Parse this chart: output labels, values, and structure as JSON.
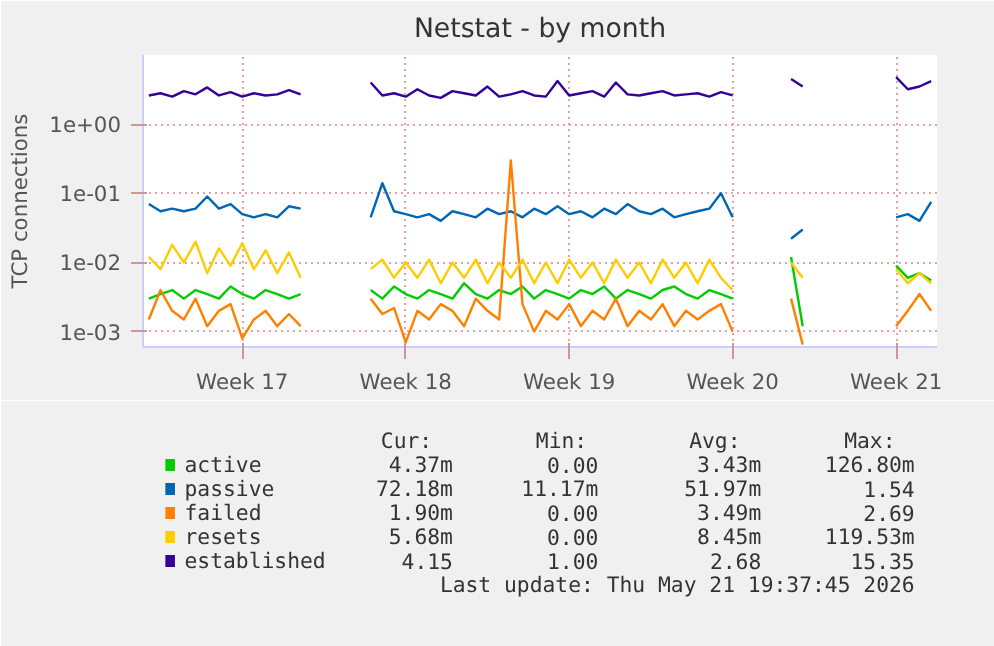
{
  "chart_data": {
    "type": "line",
    "title": "Netstat - by month",
    "ylabel": "TCP connections",
    "categories": [
      null,
      null,
      null,
      null,
      null,
      null,
      null,
      null,
      "Week 17",
      null,
      null,
      null,
      null,
      null,
      null,
      null,
      null,
      null,
      null,
      null,
      null,
      null,
      "Week 18",
      null,
      null,
      null,
      null,
      null,
      null,
      null,
      null,
      null,
      null,
      null,
      null,
      null,
      "Week 19",
      null,
      null,
      null,
      null,
      null,
      null,
      null,
      null,
      null,
      null,
      null,
      null,
      null,
      "Week 20",
      null,
      null,
      null,
      null,
      null,
      null,
      null,
      null,
      null,
      null,
      null,
      null,
      null,
      "Week 21",
      null,
      null,
      null
    ],
    "series": [
      {
        "name": "active",
        "color": "#00cc00",
        "values": [
          0.003,
          0.0035,
          0.004,
          0.003,
          0.004,
          0.0035,
          0.003,
          0.0045,
          0.0035,
          0.003,
          0.004,
          0.0035,
          0.003,
          0.0035,
          null,
          null,
          null,
          null,
          null,
          0.004,
          0.003,
          0.0045,
          0.0035,
          0.003,
          0.004,
          0.0035,
          0.003,
          0.005,
          0.0035,
          0.003,
          0.004,
          0.0035,
          0.0045,
          0.003,
          0.004,
          0.0035,
          0.003,
          0.004,
          0.0035,
          0.0045,
          0.003,
          0.004,
          0.0035,
          0.003,
          0.004,
          0.0045,
          0.0035,
          0.003,
          0.004,
          0.0035,
          0.003,
          null,
          null,
          null,
          null,
          0.012,
          0.0012,
          null,
          null,
          null,
          null,
          null,
          null,
          null,
          0.009,
          0.006,
          0.007,
          0.0055
        ]
      },
      {
        "name": "passive",
        "color": "#0066b3",
        "values": [
          0.07,
          0.055,
          0.06,
          0.055,
          0.06,
          0.09,
          0.06,
          0.07,
          0.05,
          0.045,
          0.05,
          0.045,
          0.065,
          0.06,
          null,
          null,
          null,
          null,
          null,
          0.045,
          0.14,
          0.055,
          0.05,
          0.045,
          0.05,
          0.04,
          0.055,
          0.05,
          0.045,
          0.06,
          0.05,
          0.055,
          0.045,
          0.06,
          0.05,
          0.065,
          0.05,
          0.055,
          0.045,
          0.06,
          0.05,
          0.07,
          0.055,
          0.05,
          0.06,
          0.045,
          0.05,
          0.055,
          0.06,
          0.1,
          0.045,
          null,
          null,
          null,
          null,
          0.022,
          0.03,
          null,
          null,
          null,
          null,
          null,
          null,
          null,
          0.045,
          0.05,
          0.04,
          0.075
        ]
      },
      {
        "name": "failed",
        "color": "#ff8000",
        "values": [
          0.0015,
          0.004,
          0.002,
          0.0015,
          0.003,
          0.0012,
          0.002,
          0.0025,
          0.0008,
          0.0015,
          0.002,
          0.0012,
          0.0018,
          0.0012,
          null,
          null,
          null,
          null,
          null,
          0.003,
          0.0018,
          0.0022,
          0.0007,
          0.002,
          0.0015,
          0.0025,
          0.002,
          0.0012,
          0.003,
          0.002,
          0.0015,
          0.3,
          0.0025,
          0.001,
          0.002,
          0.0015,
          0.0025,
          0.0012,
          0.002,
          0.0015,
          0.003,
          0.0012,
          0.002,
          0.0015,
          0.0025,
          0.0012,
          0.002,
          0.0015,
          0.002,
          0.0025,
          0.001,
          null,
          null,
          null,
          null,
          0.003,
          0.00065,
          null,
          null,
          null,
          null,
          null,
          null,
          null,
          0.0012,
          0.002,
          0.0035,
          0.002
        ]
      },
      {
        "name": "resets",
        "color": "#ffcc00",
        "values": [
          0.012,
          0.008,
          0.018,
          0.01,
          0.02,
          0.007,
          0.016,
          0.009,
          0.019,
          0.008,
          0.015,
          0.007,
          0.014,
          0.006,
          null,
          null,
          null,
          null,
          null,
          0.008,
          0.011,
          0.006,
          0.01,
          0.006,
          0.011,
          0.005,
          0.01,
          0.006,
          0.011,
          0.005,
          0.01,
          0.006,
          0.011,
          0.005,
          0.01,
          0.005,
          0.011,
          0.006,
          0.01,
          0.005,
          0.011,
          0.006,
          0.01,
          0.005,
          0.011,
          0.006,
          0.01,
          0.005,
          0.011,
          0.006,
          0.004,
          null,
          null,
          null,
          null,
          0.01,
          0.006,
          null,
          null,
          null,
          null,
          null,
          null,
          null,
          0.008,
          0.005,
          0.007,
          0.005
        ]
      },
      {
        "name": "established",
        "color": "#330099",
        "values": [
          2.6,
          2.8,
          2.5,
          3.0,
          2.7,
          3.4,
          2.6,
          2.9,
          2.5,
          2.8,
          2.6,
          2.7,
          3.1,
          2.7,
          null,
          null,
          null,
          null,
          null,
          4.0,
          2.6,
          2.8,
          2.5,
          3.2,
          2.6,
          2.4,
          3.0,
          2.8,
          2.6,
          3.5,
          2.5,
          2.7,
          3.0,
          2.6,
          2.5,
          4.2,
          2.6,
          2.8,
          3.0,
          2.5,
          4.0,
          2.7,
          2.6,
          2.8,
          3.0,
          2.6,
          2.7,
          2.8,
          2.5,
          2.9,
          2.6,
          null,
          null,
          null,
          null,
          4.5,
          3.5,
          null,
          null,
          null,
          null,
          null,
          null,
          null,
          4.8,
          3.2,
          3.5,
          4.2
        ]
      }
    ],
    "log": true,
    "ylim": [
      0.0006,
      10
    ],
    "yticks": [
      {
        "value": 0.001,
        "label": "1e-03"
      },
      {
        "value": 0.01,
        "label": "1e-02"
      },
      {
        "value": 0.1,
        "label": "1e-01"
      },
      {
        "value": 1,
        "label": "1e+00"
      }
    ],
    "grid": true,
    "legend": "bottom",
    "annotations": [
      "Cur:",
      "Min:",
      "Avg:",
      "Max:",
      "4.37m",
      "0.00",
      "3.43m",
      "126.80m",
      "72.18m",
      "11.17m",
      "51.97m",
      "1.54",
      "1.90m",
      "0.00",
      "3.49m",
      "2.69",
      "5.68m",
      "0.00",
      "8.45m",
      "119.53m",
      "4.15",
      "1.00",
      "2.68",
      "15.35",
      "Last update: Thu May 21 19:37:45 2026"
    ]
  }
}
